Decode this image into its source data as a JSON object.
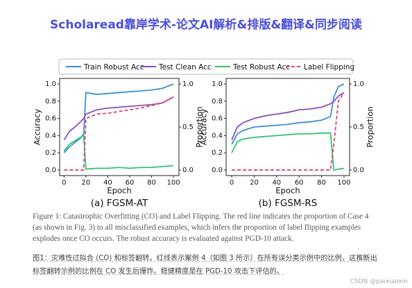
{
  "header": {
    "title": "Scholaread靠岸学术-论文AI解析&排版&翻译&同步阅读"
  },
  "chart_data": [
    {
      "type": "line",
      "title": "(a) FGSM-AT",
      "xlabel": "Epoch",
      "ylabel": "Accuracy",
      "y2label": "Proportion",
      "x": [
        0,
        5,
        10,
        15,
        18,
        20,
        30,
        40,
        50,
        60,
        70,
        80,
        90,
        100
      ],
      "series": [
        {
          "name": "Train Robust Acc",
          "color": "#3a8fd6",
          "values": [
            0.2,
            0.27,
            0.32,
            0.37,
            0.42,
            0.9,
            0.88,
            0.89,
            0.9,
            0.91,
            0.92,
            0.93,
            0.95,
            1.0
          ]
        },
        {
          "name": "Test Clean Acc",
          "color": "#8a4cb8",
          "values": [
            0.35,
            0.45,
            0.5,
            0.56,
            0.6,
            0.65,
            0.7,
            0.72,
            0.73,
            0.74,
            0.75,
            0.76,
            0.78,
            0.85
          ]
        },
        {
          "name": "Test Robust Acc",
          "color": "#2fc46a",
          "values": [
            0.22,
            0.3,
            0.34,
            0.38,
            0.4,
            0.01,
            0.02,
            0.02,
            0.03,
            0.02,
            0.03,
            0.03,
            0.04,
            0.05
          ]
        },
        {
          "name": "Label Flipping",
          "color": "#e0407a",
          "dash": true,
          "axis": "y2",
          "values": [
            0,
            0,
            0,
            0,
            0,
            0.6,
            0.65,
            0.66,
            0.68,
            0.7,
            0.72,
            0.75,
            0.78,
            0.85
          ]
        }
      ],
      "xlim": [
        -4,
        105
      ],
      "xticks": [
        0,
        20,
        40,
        60,
        80,
        100
      ],
      "ylim": [
        -0.065,
        1.065
      ],
      "yticks": [
        {
          "value": 0,
          "label": "0.0"
        },
        0.2,
        0.4,
        0.6,
        0.8,
        {
          "value": 1,
          "label": "1.0"
        }
      ],
      "y2lim": [
        -0.065,
        1.065
      ],
      "y2ticks": [
        {
          "value": 0,
          "label": "0.0"
        },
        0.5,
        {
          "value": 1,
          "label": "1.0"
        }
      ]
    },
    {
      "type": "line",
      "title": "(b) FGSM-RS",
      "xlabel": "Epoch",
      "ylabel": "Accuracy",
      "y2label": "Proportion",
      "x": [
        0,
        5,
        10,
        20,
        30,
        40,
        50,
        60,
        70,
        80,
        88,
        91,
        95,
        100
      ],
      "series": [
        {
          "color": "#3a8fd6",
          "values": [
            0.3,
            0.42,
            0.46,
            0.5,
            0.51,
            0.52,
            0.53,
            0.55,
            0.56,
            0.58,
            0.62,
            0.85,
            0.97,
            1.0
          ]
        },
        {
          "color": "#8a4cb8",
          "values": [
            0.35,
            0.5,
            0.55,
            0.6,
            0.63,
            0.65,
            0.67,
            0.7,
            0.71,
            0.73,
            0.77,
            0.8,
            0.86,
            0.9
          ]
        },
        {
          "color": "#2fc46a",
          "values": [
            0.2,
            0.33,
            0.36,
            0.38,
            0.39,
            0.4,
            0.41,
            0.42,
            0.42,
            0.43,
            0.43,
            0.0,
            0.01,
            0.02
          ]
        },
        {
          "color": "#e0407a",
          "dash": true,
          "axis": "y2",
          "values": [
            0,
            0,
            0,
            0,
            0,
            0,
            0,
            0,
            0,
            0,
            0,
            0.3,
            0.8,
            0.9
          ]
        }
      ],
      "xlim": [
        -5,
        105
      ],
      "xticks": [
        0,
        20,
        40,
        60,
        80,
        100
      ],
      "ylim": [
        -0.065,
        1.065
      ],
      "yticks": [
        {
          "value": 0,
          "label": "0.0"
        },
        0.2,
        0.4,
        0.6,
        0.8,
        {
          "value": 1,
          "label": "1.0"
        }
      ],
      "y2lim": [
        -0.065,
        1.065
      ],
      "y2ticks": [
        {
          "value": 0,
          "label": "0.0"
        },
        0.5,
        {
          "value": 1,
          "label": "1.0"
        }
      ]
    }
  ],
  "caption": "Figure 1: Catastrophic Overfitting (CO) and Label Flipping. The red line indicates the proportion of Case 4 (as shown in Fig. 3) to all misclassified examples, which infers the proportion of label flipping examples explodes once CO occurs. The robust accuracy is evaluated against PGD-10 attack.",
  "caption_translation": "图1：灾难性过拟合 (CO) 和标签翻转。红线表示案例 4（如图 3 所示）在所有误分类示例中的比例，这推断出标签翻转示例的比例在 CO 发生后爆炸。稳健精度是在 PGD-10 攻击下评估的。",
  "watermark": "CSDN @paixiaoxin"
}
